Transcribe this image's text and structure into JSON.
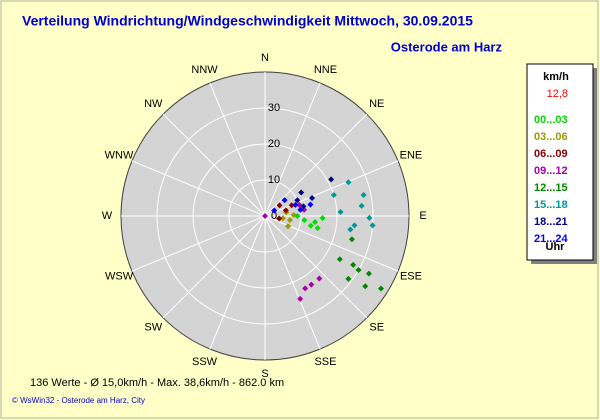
{
  "chart_data": {
    "type": "polar-scatter",
    "title": "Verteilung Windrichtung/Windgeschwindigkeit  Mittwoch, 30.09.2015",
    "subtitle": "Osterode am Harz",
    "directions": [
      "N",
      "NNE",
      "NE",
      "ENE",
      "E",
      "ESE",
      "SE",
      "SSE",
      "S",
      "SSW",
      "SW",
      "WSW",
      "W",
      "WNW",
      "NW",
      "NNW"
    ],
    "rlim": [
      0,
      40
    ],
    "rticks": [
      0,
      10,
      20,
      30
    ],
    "grid": true,
    "legend_title": "km/h",
    "current_speed": {
      "value": 12.8,
      "label": "12,8"
    },
    "current_speed_color": "#ff0000",
    "legend_unit": "Uhr",
    "footer": "136 Werte  -   Ø 15,0km/h  -  Max. 38,6km/h  -    862.0 km",
    "credit": "© WsWin32  -  Osterode am Harz, City",
    "series": [
      {
        "name": "00...03",
        "color": "#00dd00",
        "theta": [
          97,
          92,
          102,
          103,
          96,
          90
        ],
        "values": [
          14,
          16,
          13,
          15,
          11,
          9
        ]
      },
      {
        "name": "03...06",
        "color": "#999900",
        "theta": [
          99,
          80,
          97,
          114,
          88
        ],
        "values": [
          7,
          6,
          5,
          7,
          8
        ]
      },
      {
        "name": "06...09",
        "color": "#880000",
        "theta": [
          54,
          68,
          59,
          75,
          100
        ],
        "values": [
          5,
          8,
          3,
          6,
          4
        ]
      },
      {
        "name": "09...12",
        "color": "#aa00aa",
        "theta": [
          139,
          151,
          157,
          146,
          72,
          81,
          90
        ],
        "values": [
          23,
          23,
          25,
          23,
          10,
          11,
          0
        ]
      },
      {
        "name": "12...15",
        "color": "#008800",
        "theta": [
          120,
          119,
          120,
          119,
          122,
          127,
          125,
          105
        ],
        "values": [
          24,
          28,
          30,
          33,
          38,
          29,
          34,
          25
        ]
      },
      {
        "name": "15...18",
        "color": "#009999",
        "theta": [
          68,
          73,
          84,
          91,
          96,
          87,
          78,
          99,
          95
        ],
        "values": [
          25,
          20,
          27,
          29,
          25,
          21,
          28,
          24,
          30
        ]
      },
      {
        "name": "18...21",
        "color": "#000088",
        "theta": [
          61,
          69,
          76,
          64,
          57
        ],
        "values": [
          21,
          14,
          11,
          10,
          12
        ]
      },
      {
        "name": "21...24",
        "color": "#0000ff",
        "theta": [
          80,
          76,
          70,
          59,
          51
        ],
        "values": [
          10,
          13,
          9,
          3,
          7
        ]
      }
    ]
  }
}
